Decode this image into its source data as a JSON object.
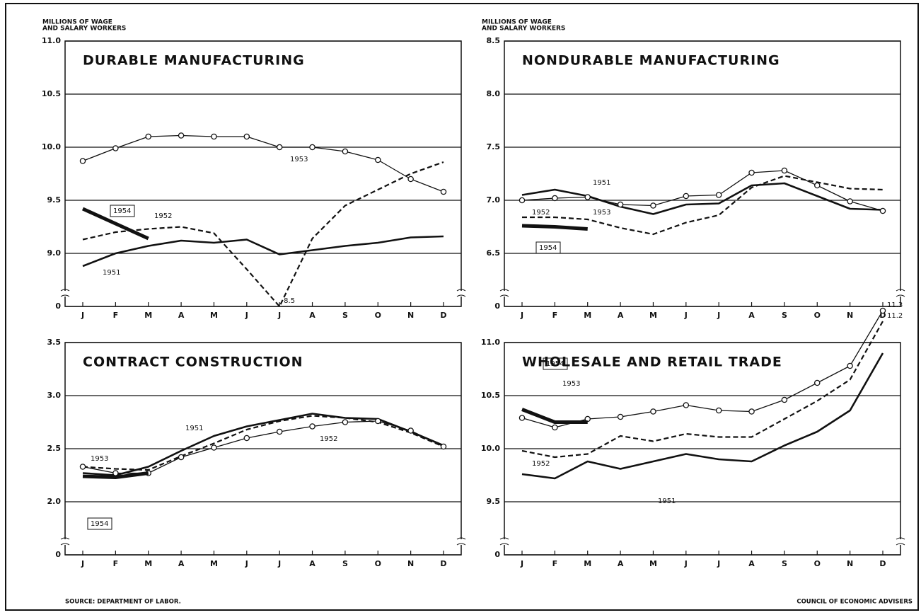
{
  "chart_data": [
    {
      "type": "line",
      "title": "DURABLE MANUFACTURING",
      "ylabel": [
        "MILLIONS OF WAGE",
        "AND SALARY WORKERS"
      ],
      "categories": [
        "J",
        "F",
        "M",
        "A",
        "M",
        "J",
        "J",
        "A",
        "S",
        "O",
        "N",
        "D"
      ],
      "ylim": [
        8.5,
        11.0
      ],
      "axis_break": true,
      "grid": true,
      "yticks": [
        {
          "value": 11.0,
          "label": "11.0"
        },
        10.5,
        {
          "value": 10.0,
          "label": "10.0"
        },
        9.5,
        {
          "value": 9.0,
          "label": "9.0"
        },
        0
      ],
      "series": [
        {
          "name": "1951",
          "color": "#111",
          "style": "solid",
          "values": [
            8.88,
            9.0,
            9.07,
            9.12,
            9.1,
            9.13,
            8.99,
            9.03,
            9.07,
            9.1,
            9.15,
            9.16
          ]
        },
        {
          "name": "1952",
          "color": "#111",
          "style": "dashed",
          "values": [
            9.13,
            9.2,
            9.23,
            9.25,
            9.19,
            8.85,
            8.5,
            9.14,
            9.45,
            9.6,
            9.75,
            9.86
          ],
          "value_labels": [
            null,
            null,
            null,
            null,
            null,
            null,
            "8.5",
            null,
            null,
            null,
            null,
            null
          ]
        },
        {
          "name": "1953",
          "color": "#111",
          "style": "markers",
          "values": [
            9.87,
            9.99,
            10.1,
            10.11,
            10.1,
            10.1,
            10.0,
            10.0,
            9.96,
            9.88,
            9.7,
            9.58
          ]
        },
        {
          "name": "1954",
          "color": "#111",
          "style": "heavy",
          "values": [
            9.42,
            9.28,
            9.14,
            null,
            null,
            null,
            null,
            null,
            null,
            null,
            null,
            null
          ]
        }
      ]
    },
    {
      "type": "line",
      "title": "NONDURABLE MANUFACTURING",
      "ylabel": [
        "MILLIONS OF WAGE",
        "AND SALARY WORKERS"
      ],
      "categories": [
        "J",
        "F",
        "M",
        "A",
        "M",
        "J",
        "J",
        "A",
        "S",
        "O",
        "N",
        "D"
      ],
      "ylim": [
        6.0,
        8.5
      ],
      "axis_break": true,
      "grid": true,
      "yticks": [
        8.5,
        {
          "value": 8.0,
          "label": "8.0"
        },
        7.5,
        {
          "value": 7.0,
          "label": "7.0"
        },
        6.5,
        0
      ],
      "series": [
        {
          "name": "1951",
          "color": "#111",
          "style": "solid",
          "values": [
            7.05,
            7.1,
            7.04,
            6.94,
            6.87,
            6.96,
            6.97,
            7.14,
            7.16,
            7.04,
            6.92,
            6.91
          ]
        },
        {
          "name": "1952",
          "color": "#111",
          "style": "dashed",
          "values": [
            6.84,
            6.84,
            6.82,
            6.74,
            6.68,
            6.79,
            6.86,
            7.12,
            7.23,
            7.17,
            7.11,
            7.1
          ]
        },
        {
          "name": "1953",
          "color": "#111",
          "style": "markers",
          "values": [
            7.0,
            7.02,
            7.03,
            6.96,
            6.95,
            7.04,
            7.05,
            7.26,
            7.28,
            7.14,
            6.99,
            6.9
          ]
        },
        {
          "name": "1954",
          "color": "#111",
          "style": "heavy",
          "values": [
            6.76,
            6.75,
            6.73,
            null,
            null,
            null,
            null,
            null,
            null,
            null,
            null,
            null
          ]
        }
      ]
    },
    {
      "type": "line",
      "title": "CONTRACT CONSTRUCTION",
      "categories": [
        "J",
        "F",
        "M",
        "A",
        "M",
        "J",
        "J",
        "A",
        "S",
        "O",
        "N",
        "D"
      ],
      "ylim": [
        1.5,
        3.5
      ],
      "axis_break": true,
      "grid": true,
      "yticks": [
        3.5,
        {
          "value": 3.0,
          "label": "3.0"
        },
        2.5,
        {
          "value": 2.0,
          "label": "2.0"
        },
        0
      ],
      "series": [
        {
          "name": "1951",
          "color": "#111",
          "style": "solid",
          "values": [
            2.27,
            2.25,
            2.33,
            2.48,
            2.62,
            2.71,
            2.77,
            2.83,
            2.79,
            2.78,
            2.66,
            2.53
          ]
        },
        {
          "name": "1952",
          "color": "#111",
          "style": "dashed",
          "values": [
            2.33,
            2.31,
            2.3,
            2.43,
            2.55,
            2.68,
            2.76,
            2.81,
            2.79,
            2.75,
            2.65,
            2.52
          ]
        },
        {
          "name": "1953",
          "color": "#111",
          "style": "markers",
          "values": [
            2.33,
            2.27,
            2.27,
            2.42,
            2.51,
            2.6,
            2.66,
            2.71,
            2.75,
            2.76,
            2.67,
            2.52
          ]
        },
        {
          "name": "1954",
          "color": "#111",
          "style": "heavy",
          "values": [
            2.24,
            2.23,
            2.27,
            null,
            null,
            null,
            null,
            null,
            null,
            null,
            null,
            null
          ]
        }
      ]
    },
    {
      "type": "line",
      "title": "WHOLESALE AND RETAIL TRADE",
      "categories": [
        "J",
        "F",
        "M",
        "A",
        "M",
        "J",
        "J",
        "A",
        "S",
        "O",
        "N",
        "D"
      ],
      "ylim": [
        9.0,
        11.0
      ],
      "axis_break": true,
      "grid": true,
      "yticks": [
        {
          "value": 11.0,
          "label": "11.0"
        },
        10.5,
        {
          "value": 10.0,
          "label": "10.0"
        },
        9.5,
        0
      ],
      "series": [
        {
          "name": "1951",
          "color": "#111",
          "style": "solid",
          "values": [
            9.76,
            9.72,
            9.88,
            9.81,
            9.88,
            9.95,
            9.9,
            9.88,
            10.03,
            10.16,
            10.36,
            10.9
          ]
        },
        {
          "name": "1952",
          "color": "#111",
          "style": "dashed",
          "values": [
            9.98,
            9.92,
            9.95,
            10.12,
            10.07,
            10.14,
            10.11,
            10.11,
            10.28,
            10.45,
            10.65,
            11.2
          ],
          "value_labels": [
            null,
            null,
            null,
            null,
            null,
            null,
            null,
            null,
            null,
            null,
            null,
            "11.2"
          ]
        },
        {
          "name": "1953",
          "color": "#111",
          "style": "markers",
          "values": [
            10.29,
            10.2,
            10.28,
            10.3,
            10.35,
            10.41,
            10.36,
            10.35,
            10.46,
            10.62,
            10.78,
            11.3
          ],
          "value_labels": [
            null,
            null,
            null,
            null,
            null,
            null,
            null,
            null,
            null,
            null,
            null,
            "11.3"
          ]
        },
        {
          "name": "1954",
          "color": "#111",
          "style": "heavy",
          "values": [
            10.37,
            10.25,
            10.25,
            null,
            null,
            null,
            null,
            null,
            null,
            null,
            null,
            null
          ]
        }
      ]
    }
  ],
  "footer": {
    "source": "SOURCE: DEPARTMENT OF LABOR.",
    "credit": "COUNCIL OF ECONOMIC ADVISERS"
  }
}
